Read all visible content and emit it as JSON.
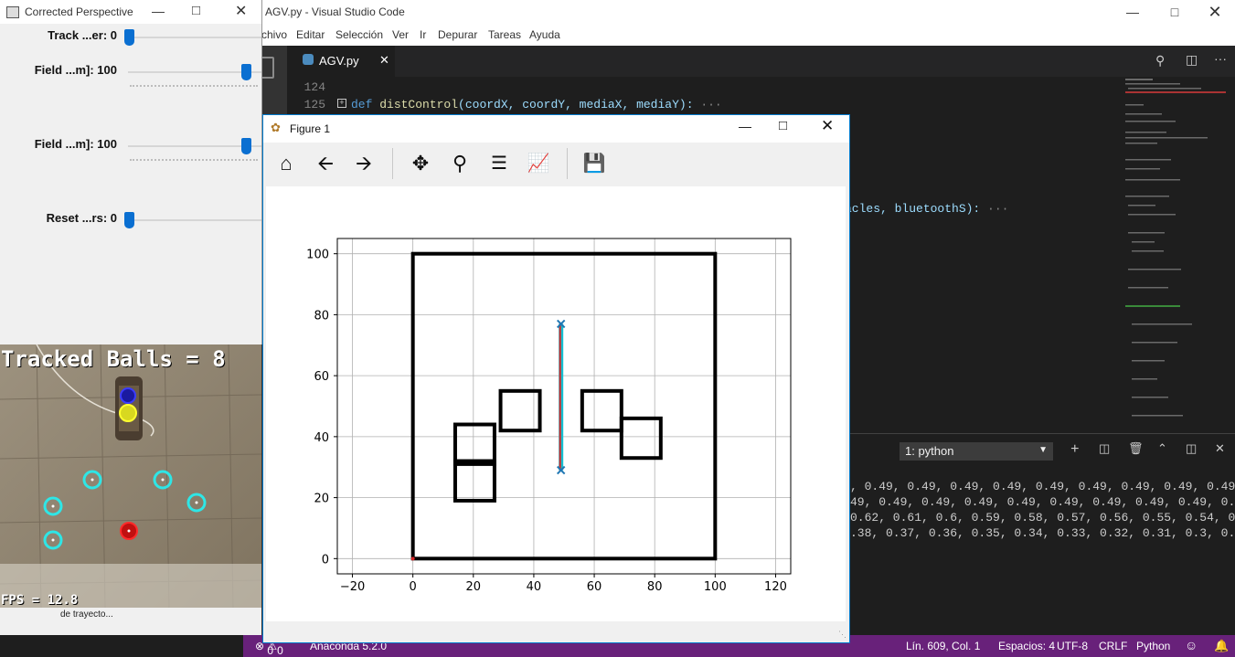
{
  "cp_window": {
    "title": "Corrected Perspective",
    "trackbars": [
      {
        "label": "Track ...er: 0",
        "value": 0
      },
      {
        "label": "Field ...m]: 100",
        "value": 100
      },
      {
        "label": "Field ...m]: 100",
        "value": 100
      },
      {
        "label": "Reset ...rs: 0",
        "value": 0
      }
    ],
    "camera": {
      "tracked_text": "Tracked Balls = 8",
      "fps_text": "FPS = 12.8",
      "trail_text": "de trayecto..."
    }
  },
  "vscode": {
    "title": "AGV.py - Visual Studio Code",
    "menu": [
      "chivo",
      "Editar",
      "Selección",
      "Ver",
      "Ir",
      "Depurar",
      "Tareas",
      "Ayuda"
    ],
    "tab": "AGV.py",
    "lines": {
      "n124": "124",
      "n125": "125",
      "def_kw": "def",
      "fn_name": "distControl",
      "fn_params": "(coordX, coordY, mediaX, mediaY):",
      "ellipsis": "···",
      "line_partial": "acles, bluetoothS):"
    },
    "terminal": {
      "selector": "1: python",
      "rows": [
        ", 0.49, 0.49, 0.49, 0.49, 0.49, 0.49, 0.49, 0.49, 0.49,",
        "49, 0.49, 0.49, 0.49, 0.49, 0.49, 0.49, 0.49, 0.49, 0.4",
        "0.62, 0.61, 0.6, 0.59, 0.58, 0.57, 0.56, 0.55, 0.54, 0.",
        ".38, 0.37, 0.36, 0.35, 0.34, 0.33, 0.32, 0.31, 0.3, 0.2"
      ]
    },
    "status": {
      "errors": "0",
      "warnings": "0",
      "env": "Anaconda 5.2.0",
      "position": "Lín. 609, Col. 1",
      "spaces": "Espacios: 4",
      "encoding": "UTF-8",
      "eol": "CRLF",
      "language": "Python"
    }
  },
  "figure": {
    "title": "Figure 1"
  },
  "chart_data": {
    "type": "scatter",
    "title": "",
    "xlabel": "",
    "ylabel": "",
    "xlim": [
      -25,
      125
    ],
    "ylim": [
      -5,
      105
    ],
    "xticks": [
      -20,
      0,
      20,
      40,
      60,
      80,
      100,
      120
    ],
    "yticks": [
      0,
      20,
      40,
      60,
      80,
      100
    ],
    "grid": true,
    "colors": {
      "obstacles": "#000000",
      "path_red": "#d62728",
      "path_cyan": "#17becf",
      "markers": "#1f77b4"
    },
    "series": [
      {
        "kind": "boundary",
        "rect": [
          0,
          0,
          100,
          100
        ]
      },
      {
        "kind": "obstacle",
        "rect": [
          14,
          19,
          27,
          32
        ]
      },
      {
        "kind": "obstacle",
        "rect": [
          14,
          31,
          27,
          44
        ]
      },
      {
        "kind": "obstacle",
        "rect": [
          29,
          42,
          42,
          55
        ]
      },
      {
        "kind": "obstacle",
        "rect": [
          56,
          42,
          69,
          55
        ]
      },
      {
        "kind": "obstacle",
        "rect": [
          69,
          33,
          82,
          46
        ]
      }
    ],
    "path": {
      "x": 49,
      "y_start": 29,
      "y_end": 77
    }
  }
}
